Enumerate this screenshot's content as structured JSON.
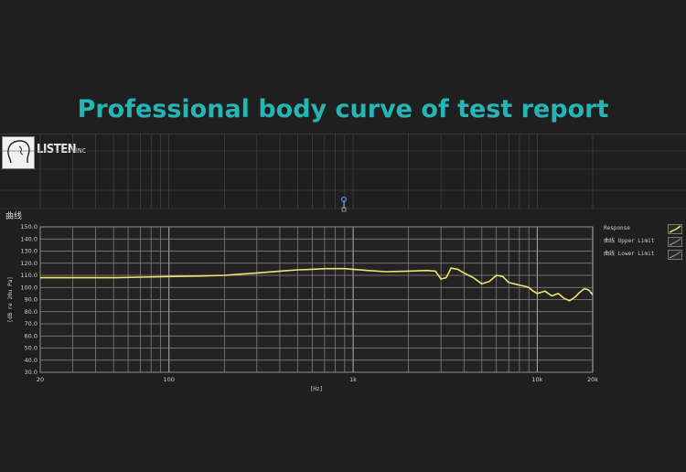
{
  "headline": "Professional body curve of test report",
  "brand": {
    "name": "LISTEN",
    "suffix": "INC",
    "logo_icon": "head-profile-icon"
  },
  "panel_title": "曲线",
  "colors": {
    "headline": "#25b5b5",
    "response": "#f2e56b",
    "grid": "#8a8a8a",
    "background": "#1f1f1f"
  },
  "chart_data": {
    "type": "line",
    "x_scale": "log",
    "xlim": [
      20,
      20000
    ],
    "ylim": [
      30,
      150
    ],
    "xlabel": "[Hz]",
    "ylabel": "[dB re 20u Pa]",
    "y_ticks": [
      "150.0",
      "140.0",
      "130.0",
      "120.0",
      "110.0",
      "100.0",
      "90.0",
      "80.0",
      "70.0",
      "60.0",
      "50.0",
      "40.0",
      "30.0"
    ],
    "x_ticks": [
      {
        "value": 20,
        "label": "20"
      },
      {
        "value": 100,
        "label": "100"
      },
      {
        "value": 1000,
        "label": "1k"
      },
      {
        "value": 10000,
        "label": "10k"
      },
      {
        "value": 20000,
        "label": "20k"
      }
    ],
    "grid": true,
    "legend_position": "right",
    "legend": [
      {
        "name": "Response"
      },
      {
        "name": "曲线 Upper Limit"
      },
      {
        "name": "曲线 Lower Limit"
      }
    ],
    "series": [
      {
        "name": "Response",
        "x": [
          20,
          30,
          50,
          70,
          100,
          150,
          200,
          300,
          400,
          500,
          600,
          700,
          800,
          900,
          1000,
          1200,
          1500,
          2000,
          2500,
          2800,
          3000,
          3200,
          3400,
          3700,
          4000,
          4500,
          5000,
          5500,
          6000,
          6500,
          7000,
          7500,
          8000,
          8500,
          9000,
          9500,
          10000,
          11000,
          12000,
          13000,
          14000,
          15000,
          16000,
          17000,
          18000,
          19000,
          20000
        ],
        "y": [
          108,
          108,
          108,
          108.5,
          109,
          109.5,
          110,
          112,
          113.5,
          114.5,
          115,
          115.5,
          115.5,
          115.5,
          115,
          114,
          113,
          113.5,
          114,
          113.5,
          107,
          108,
          116,
          115,
          112,
          108,
          103,
          105,
          110,
          109,
          104,
          103,
          102,
          101,
          100,
          97,
          95,
          97,
          93,
          95,
          91,
          89,
          92,
          96,
          99,
          98,
          94
        ]
      }
    ]
  }
}
